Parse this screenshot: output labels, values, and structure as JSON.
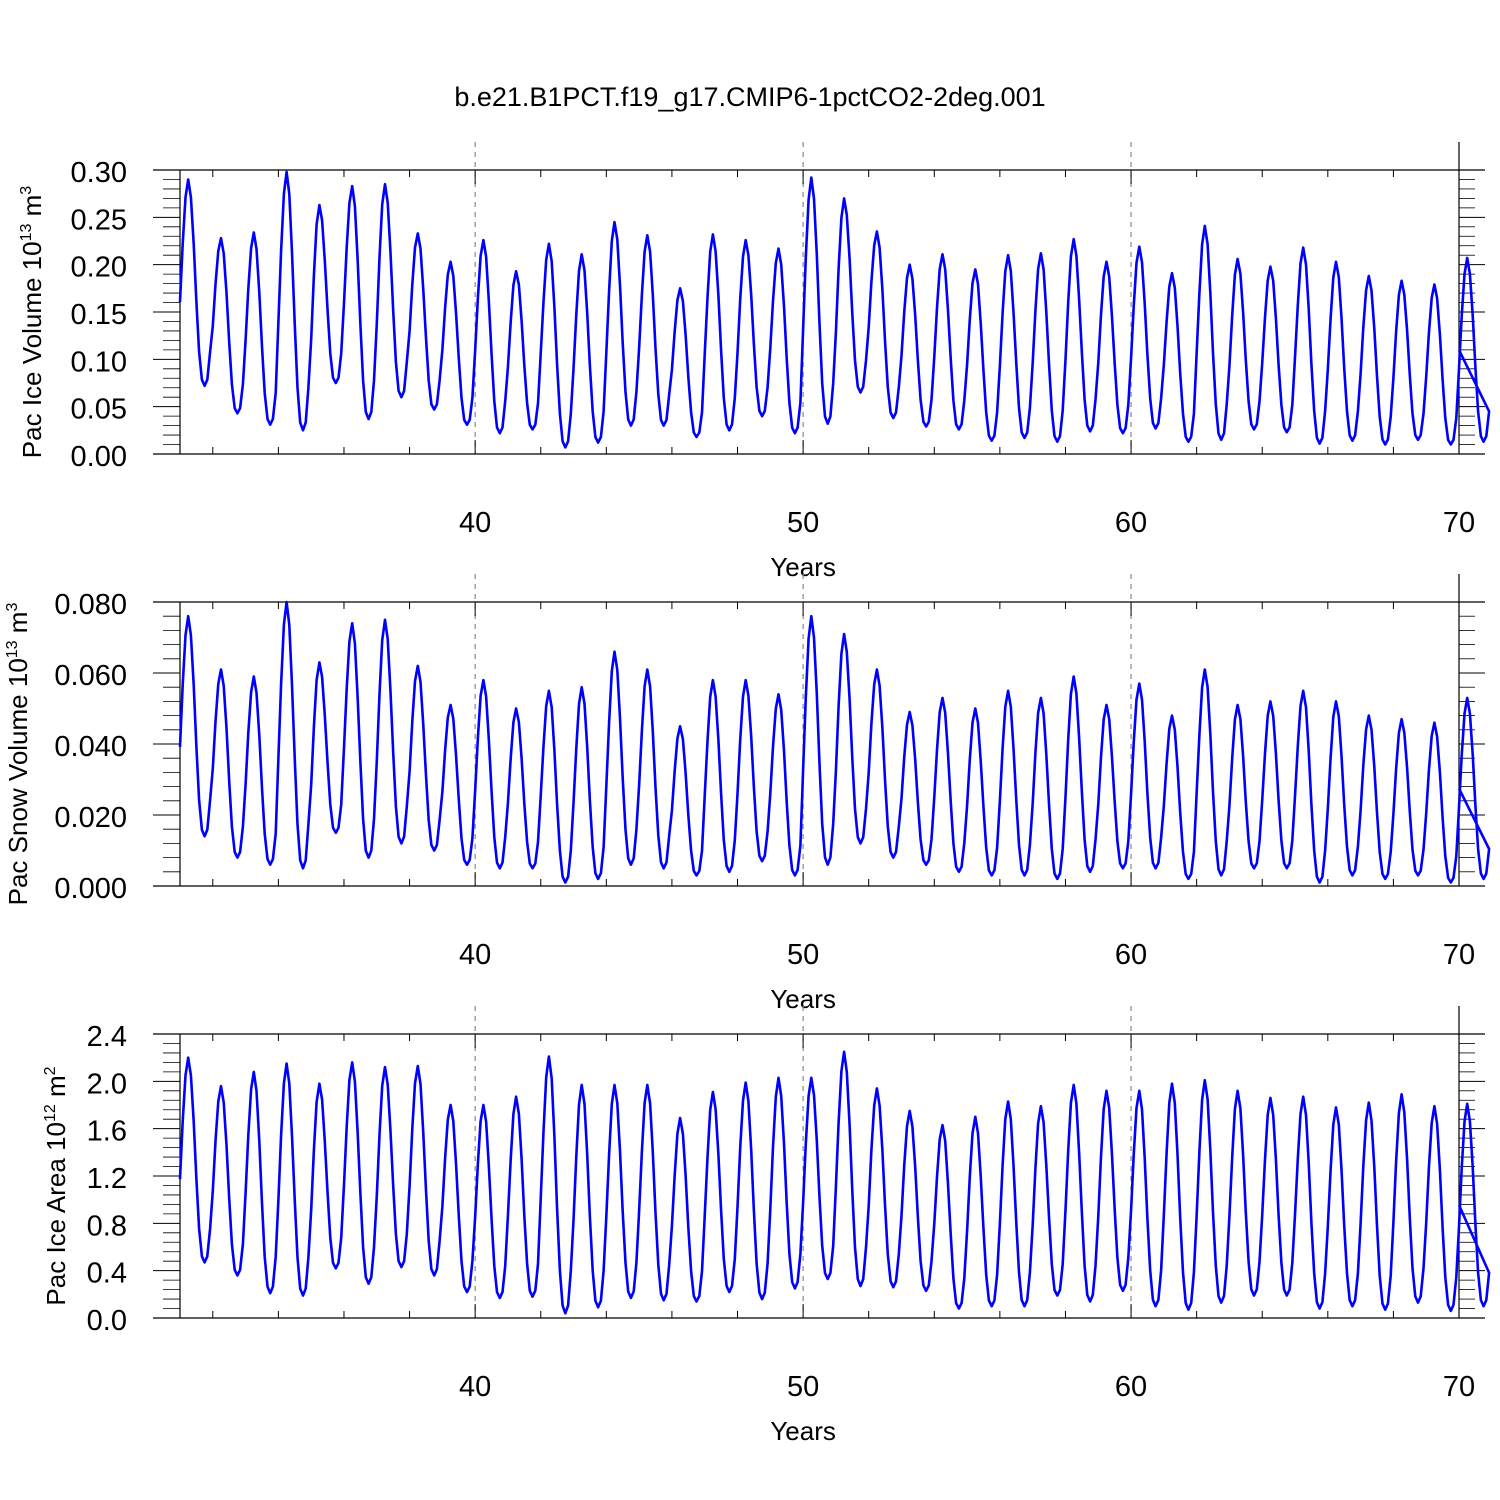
{
  "title": "b.e21.B1PCT.f19_g17.CMIP6-1pctCO2-2deg.001",
  "colors": {
    "series": "#0000ff",
    "axis": "#000000",
    "refline": "#888888"
  },
  "chart_data": [
    {
      "type": "line",
      "ylabel": "Pac Ice Volume 10",
      "ylabel_sup": "13",
      "ylabel_unit": " m",
      "ylabel_unit_sup": "3",
      "xlabel": "Years",
      "xlim": [
        31,
        70
      ],
      "ylim": [
        0,
        0.3
      ],
      "xticks": [
        40,
        50,
        60,
        70
      ],
      "xtick_labels": [
        "40",
        "50",
        "60",
        "70"
      ],
      "yticks": [
        0,
        0.05,
        0.1,
        0.15,
        0.2,
        0.25,
        0.3
      ],
      "ytick_labels": [
        "0.00",
        "0.05",
        "0.10",
        "0.15",
        "0.20",
        "0.25",
        "0.30"
      ],
      "reference_lines_x": [
        40,
        50,
        60
      ],
      "annual_min": [
        0.072,
        0.043,
        0.031,
        0.025,
        0.075,
        0.037,
        0.06,
        0.047,
        0.031,
        0.022,
        0.026,
        0.007,
        0.012,
        0.03,
        0.03,
        0.018,
        0.025,
        0.04,
        0.022,
        0.032,
        0.065,
        0.038,
        0.029,
        0.026,
        0.014,
        0.017,
        0.013,
        0.024,
        0.022,
        0.027,
        0.013,
        0.015,
        0.026,
        0.023,
        0.011,
        0.014,
        0.01,
        0.015,
        0.01,
        0.013
      ],
      "annual_max": [
        0.29,
        0.228,
        0.234,
        0.298,
        0.263,
        0.283,
        0.285,
        0.233,
        0.203,
        0.226,
        0.193,
        0.222,
        0.211,
        0.245,
        0.231,
        0.175,
        0.232,
        0.226,
        0.217,
        0.292,
        0.27,
        0.235,
        0.2,
        0.211,
        0.195,
        0.21,
        0.212,
        0.227,
        0.203,
        0.219,
        0.191,
        0.241,
        0.206,
        0.198,
        0.218,
        0.203,
        0.188,
        0.183,
        0.179,
        0.207
      ]
    },
    {
      "type": "line",
      "ylabel": "Pac Snow Volume 10",
      "ylabel_sup": "13",
      "ylabel_unit": " m",
      "ylabel_unit_sup": "3",
      "xlabel": "Years",
      "xlim": [
        31,
        70
      ],
      "ylim": [
        0,
        0.08
      ],
      "xticks": [
        40,
        50,
        60,
        70
      ],
      "xtick_labels": [
        "40",
        "50",
        "60",
        "70"
      ],
      "yticks": [
        0,
        0.02,
        0.04,
        0.06,
        0.08
      ],
      "ytick_labels": [
        "0.000",
        "0.020",
        "0.040",
        "0.060",
        "0.080"
      ],
      "reference_lines_x": [
        40,
        50,
        60
      ],
      "annual_min": [
        0.014,
        0.008,
        0.006,
        0.005,
        0.015,
        0.008,
        0.012,
        0.01,
        0.006,
        0.005,
        0.005,
        0.001,
        0.002,
        0.006,
        0.005,
        0.003,
        0.004,
        0.007,
        0.003,
        0.006,
        0.012,
        0.008,
        0.006,
        0.004,
        0.003,
        0.003,
        0.002,
        0.004,
        0.005,
        0.005,
        0.002,
        0.003,
        0.005,
        0.005,
        0.001,
        0.003,
        0.002,
        0.003,
        0.001,
        0.002
      ],
      "annual_max": [
        0.076,
        0.061,
        0.059,
        0.08,
        0.063,
        0.074,
        0.075,
        0.062,
        0.051,
        0.058,
        0.05,
        0.055,
        0.056,
        0.066,
        0.061,
        0.045,
        0.058,
        0.058,
        0.054,
        0.076,
        0.071,
        0.061,
        0.049,
        0.053,
        0.05,
        0.055,
        0.053,
        0.059,
        0.051,
        0.057,
        0.048,
        0.061,
        0.051,
        0.052,
        0.055,
        0.052,
        0.048,
        0.047,
        0.046,
        0.053
      ]
    },
    {
      "type": "line",
      "ylabel": "Pac Ice Area 10",
      "ylabel_sup": "12",
      "ylabel_unit": " m",
      "ylabel_unit_sup": "2",
      "xlabel": "Years",
      "xlim": [
        31,
        70
      ],
      "ylim": [
        0,
        2.4
      ],
      "xticks": [
        40,
        50,
        60,
        70
      ],
      "xtick_labels": [
        "40",
        "50",
        "60",
        "70"
      ],
      "yticks": [
        0,
        0.4,
        0.8,
        1.2,
        1.6,
        2.0,
        2.4
      ],
      "ytick_labels": [
        "0.0",
        "0.4",
        "0.8",
        "1.2",
        "1.6",
        "2.0",
        "2.4"
      ],
      "reference_lines_x": [
        40,
        50,
        60
      ],
      "annual_min": [
        0.47,
        0.36,
        0.21,
        0.19,
        0.42,
        0.29,
        0.43,
        0.36,
        0.22,
        0.17,
        0.18,
        0.04,
        0.09,
        0.17,
        0.15,
        0.14,
        0.22,
        0.16,
        0.25,
        0.33,
        0.27,
        0.26,
        0.23,
        0.08,
        0.1,
        0.1,
        0.19,
        0.14,
        0.23,
        0.1,
        0.07,
        0.13,
        0.19,
        0.19,
        0.08,
        0.1,
        0.07,
        0.13,
        0.06,
        0.1
      ],
      "annual_max": [
        2.2,
        1.96,
        2.08,
        2.15,
        1.98,
        2.16,
        2.12,
        2.13,
        1.8,
        1.8,
        1.87,
        2.21,
        1.97,
        1.97,
        1.97,
        1.69,
        1.91,
        1.99,
        2.03,
        2.03,
        2.25,
        1.94,
        1.75,
        1.63,
        1.7,
        1.83,
        1.79,
        1.97,
        1.92,
        1.92,
        1.98,
        2.01,
        1.92,
        1.86,
        1.87,
        1.78,
        1.82,
        1.89,
        1.79,
        1.81
      ]
    }
  ]
}
